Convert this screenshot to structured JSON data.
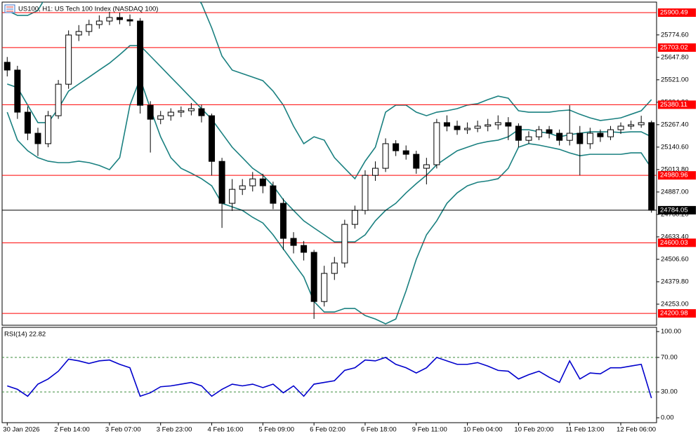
{
  "chart_data": [
    {
      "type": "candlestick",
      "title": "US100, H1:  US Tech 100 Index (NASDAQ 100)",
      "categories": [
        "30 Jan 2026",
        null,
        null,
        null,
        null,
        "2 Feb 14:00",
        null,
        null,
        null,
        null,
        "3 Feb 07:00",
        null,
        null,
        null,
        null,
        "3 Feb 23:00",
        null,
        null,
        null,
        null,
        "4 Feb 16:00",
        null,
        null,
        null,
        null,
        "5 Feb 09:00",
        null,
        null,
        null,
        null,
        "6 Feb 02:00",
        null,
        null,
        null,
        null,
        "6 Feb 18:00",
        null,
        null,
        null,
        null,
        "9 Feb 11:00",
        null,
        null,
        null,
        null,
        "10 Feb 04:00",
        null,
        null,
        null,
        null,
        "10 Feb 20:00",
        null,
        null,
        null,
        null,
        "11 Feb 13:00",
        null,
        null,
        null,
        null,
        "12 Feb 06:00",
        null,
        null,
        null
      ],
      "open": [
        25620,
        25576,
        25338,
        25219,
        25160,
        25318,
        25496,
        25774,
        25794,
        25833,
        25853,
        25873,
        25861,
        25853,
        25377,
        25298,
        25318,
        25338,
        25346,
        25358,
        25318,
        25060,
        24823,
        24902,
        24922,
        24961,
        24922,
        24823,
        24625,
        24585,
        24546,
        24268,
        24427,
        24486,
        24704,
        24783,
        24981,
        25021,
        25160,
        25120,
        25100,
        25021,
        25041,
        25279,
        25259,
        25239,
        25247,
        25259,
        25267,
        25279,
        25259,
        25179,
        25199,
        25239,
        25219,
        25179,
        25219,
        25160,
        25219,
        25199,
        25239,
        25259,
        25267,
        25279
      ],
      "high": [
        25650,
        25600,
        25370,
        25250,
        25345,
        25520,
        25800,
        25830,
        25860,
        25885,
        25905,
        25900,
        25890,
        25870,
        25400,
        25345,
        25360,
        25370,
        25390,
        25380,
        25330,
        25080,
        24960,
        24960,
        25000,
        24990,
        24945,
        24850,
        24660,
        24610,
        24560,
        24470,
        24520,
        24730,
        24810,
        25010,
        25060,
        25190,
        25180,
        25150,
        25120,
        25080,
        25300,
        25320,
        25290,
        25280,
        25290,
        25300,
        25320,
        25310,
        25275,
        25230,
        25260,
        25260,
        25240,
        25377,
        25260,
        25250,
        25240,
        25260,
        25280,
        25290,
        25318,
        25290
      ],
      "low": [
        25540,
        25300,
        25180,
        25090,
        25140,
        25300,
        25470,
        25740,
        25770,
        25810,
        25830,
        25835,
        25825,
        25330,
        25110,
        25270,
        25290,
        25310,
        25320,
        25280,
        24980,
        24684,
        24780,
        24870,
        24890,
        24880,
        24790,
        24560,
        24540,
        24500,
        24170,
        24240,
        24390,
        24460,
        24680,
        24760,
        24950,
        25000,
        25090,
        25070,
        24990,
        24930,
        25020,
        25230,
        25210,
        25215,
        25225,
        25230,
        25240,
        25180,
        25140,
        25160,
        25180,
        25190,
        25150,
        25150,
        24981,
        25130,
        25170,
        25180,
        25215,
        25240,
        25250,
        24770
      ],
      "close": [
        25576,
        25338,
        25219,
        25160,
        25318,
        25496,
        25774,
        25794,
        25833,
        25853,
        25873,
        25861,
        25853,
        25377,
        25298,
        25318,
        25338,
        25346,
        25358,
        25318,
        25060,
        24823,
        24902,
        24922,
        24961,
        24922,
        24823,
        24625,
        24585,
        24546,
        24268,
        24427,
        24486,
        24704,
        24783,
        24981,
        25021,
        25160,
        25120,
        25100,
        25021,
        25041,
        25279,
        25259,
        25239,
        25247,
        25259,
        25267,
        25279,
        25259,
        25179,
        25199,
        25239,
        25219,
        25179,
        25219,
        25160,
        25219,
        25199,
        25239,
        25259,
        25267,
        25279,
        24784.05
      ],
      "bands": {
        "upper": [
          25913,
          25885,
          25885,
          25913,
          26012,
          26130,
          26210,
          26249,
          26249,
          26249,
          26210,
          26170,
          26150,
          26130,
          26091,
          26091,
          26111,
          26071,
          26012,
          25952,
          25814,
          25655,
          25576,
          25556,
          25536,
          25516,
          25457,
          25378,
          25259,
          25160,
          25199,
          25180,
          25081,
          25021,
          24962,
          25061,
          25140,
          25338,
          25378,
          25378,
          25338,
          25318,
          25338,
          25346,
          25358,
          25378,
          25386,
          25409,
          25429,
          25417,
          25346,
          25338,
          25338,
          25338,
          25346,
          25350,
          25326,
          25306,
          25291,
          25298,
          25306,
          25326,
          25346,
          25409
        ],
        "middle": [
          25497,
          25477,
          25378,
          25279,
          25279,
          25358,
          25457,
          25497,
          25536,
          25576,
          25615,
          25663,
          25714,
          25714,
          25655,
          25596,
          25536,
          25477,
          25417,
          25358,
          25298,
          25219,
          25140,
          25081,
          25021,
          24982,
          24922,
          24843,
          24783,
          24724,
          24684,
          24645,
          24605,
          24605,
          24605,
          24645,
          24724,
          24783,
          24823,
          24882,
          24934,
          24982,
          25041,
          25081,
          25120,
          25140,
          25160,
          25172,
          25180,
          25199,
          25239,
          25239,
          25227,
          25219,
          25199,
          25211,
          25219,
          25227,
          25227,
          25227,
          25223,
          25227,
          25227,
          25199
        ],
        "lower": [
          25338,
          25180,
          25120,
          25081,
          25061,
          25053,
          25053,
          25061,
          25053,
          25037,
          25013,
          25081,
          25378,
          25528,
          25358,
          25199,
          25081,
          25021,
          24993,
          24962,
          24922,
          24823,
          24803,
          24783,
          24744,
          24712,
          24645,
          24565,
          24486,
          24407,
          24268,
          24209,
          24209,
          24229,
          24229,
          24189,
          24169,
          24142,
          24169,
          24328,
          24506,
          24645,
          24724,
          24823,
          24882,
          24922,
          24942,
          24950,
          24962,
          25021,
          25140,
          25160,
          25152,
          25140,
          25128,
          25108,
          25092,
          25100,
          25100,
          25100,
          25100,
          25108,
          25108,
          25021
        ]
      },
      "ylim": [
        24134,
        25960
      ],
      "yticks": [
        {
          "value": 25774.6,
          "label": "25774.60"
        },
        {
          "value": 25647.8,
          "label": "25647.80"
        },
        {
          "value": 25521,
          "label": "25521.00"
        },
        {
          "value": 25394.2,
          "label": "25394.20"
        },
        {
          "value": 25267.4,
          "label": "25267.40"
        },
        {
          "value": 25140.6,
          "label": "25140.60"
        },
        {
          "value": 25013.8,
          "label": "25013.80"
        },
        {
          "value": 24887,
          "label": "24887.00"
        },
        {
          "value": 24760.2,
          "label": "24760.20"
        },
        {
          "value": 24633.4,
          "label": "24633.40"
        },
        {
          "value": 24506.6,
          "label": "24506.60"
        },
        {
          "value": 24379.8,
          "label": "24379.80"
        },
        {
          "value": 24253,
          "label": "24253.00"
        }
      ],
      "levels": [
        25900.49,
        25703.02,
        25380.11,
        24980.96,
        24600.03,
        24200.98
      ],
      "current_price": 24784.05,
      "bull_color": "#ffffff",
      "bear_color": "#000000",
      "band_color": "#1a8080",
      "level_color": "#ff0000",
      "price_line_color": "#000000"
    },
    {
      "type": "line",
      "title": "RSI(14) 22.82",
      "values": [
        37,
        33,
        25,
        39,
        45,
        54,
        68,
        66,
        63,
        66,
        67,
        62,
        58,
        25,
        29,
        36,
        37,
        39,
        41,
        37,
        25,
        33,
        39,
        37,
        39,
        35,
        39,
        29,
        37,
        25,
        39,
        41,
        43,
        55,
        58,
        67,
        66,
        70,
        62,
        58,
        52,
        58,
        70,
        66,
        62,
        62,
        64,
        60,
        55,
        54,
        45,
        50,
        54,
        47,
        41,
        66,
        45,
        52,
        51,
        58,
        58,
        60,
        62,
        22.82
      ],
      "ylim": [
        -5.7,
        104.9
      ],
      "yticks": [
        {
          "value": 100,
          "label": "100.00"
        },
        {
          "value": 70,
          "label": "70.00"
        },
        {
          "value": 30,
          "label": "30.00"
        },
        {
          "value": 0,
          "label": "0.00"
        }
      ],
      "dashed_levels": [
        70,
        30
      ],
      "color": "#0000cc",
      "dashed_level_color": "#3c8c3c"
    }
  ]
}
